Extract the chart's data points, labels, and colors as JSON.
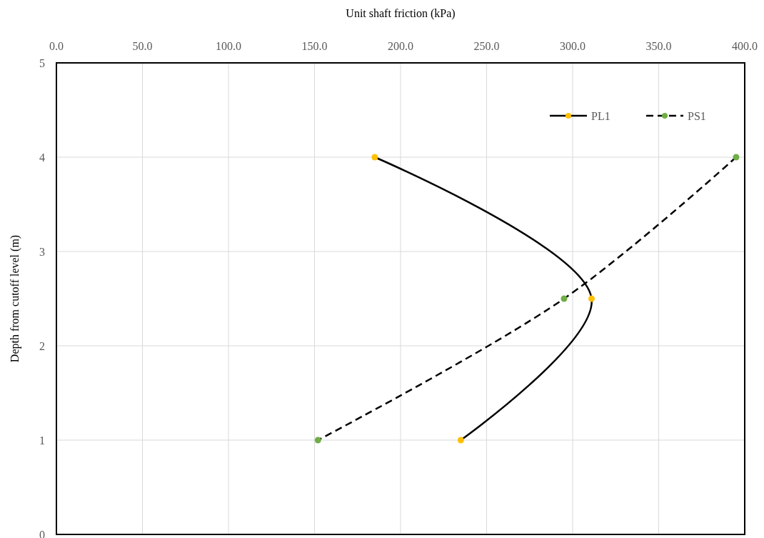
{
  "chart_data": {
    "type": "line",
    "xlabel": "Unit shaft friction (kPa)",
    "ylabel": "Depth from cutoff level (m)",
    "xlim": [
      0,
      400
    ],
    "xticks": [
      {
        "value": 0,
        "label": "0.0"
      },
      {
        "value": 50,
        "label": "50.0"
      },
      {
        "value": 100,
        "label": "100.0"
      },
      {
        "value": 150,
        "label": "150.0"
      },
      {
        "value": 200,
        "label": "200.0"
      },
      {
        "value": 250,
        "label": "250.0"
      },
      {
        "value": 300,
        "label": "300.0"
      },
      {
        "value": 350,
        "label": "350.0"
      },
      {
        "value": 400,
        "label": "400.0"
      }
    ],
    "ylim": [
      0,
      5
    ],
    "yticks": [
      0,
      1,
      2,
      3,
      4,
      5
    ],
    "grid": true,
    "legend": "top right",
    "marker": "circle",
    "series": [
      {
        "name": "PL1",
        "color": "#ffc000",
        "line_style": "solid",
        "x": [
          185,
          311,
          235
        ],
        "values": [
          4,
          2.5,
          1
        ]
      },
      {
        "name": "PS1",
        "color": "#70ad47",
        "line_style": "dashed",
        "x": [
          395,
          295,
          152
        ],
        "values": [
          4,
          2.5,
          1
        ]
      }
    ]
  }
}
